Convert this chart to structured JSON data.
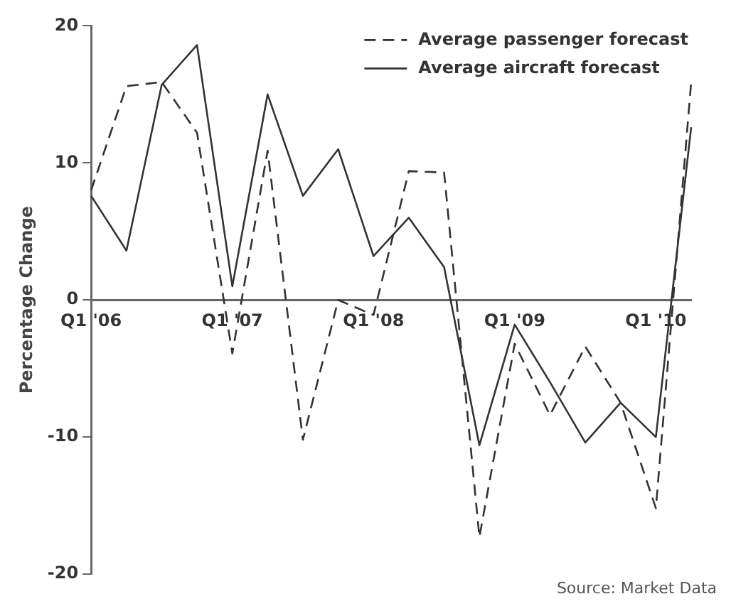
{
  "chart_data": {
    "type": "line",
    "ylabel": "Percentage Change",
    "categories": [
      "Q1 '06",
      null,
      null,
      null,
      "Q1 '07",
      null,
      null,
      null,
      "Q1 '08",
      null,
      null,
      null,
      "Q1 '09",
      null,
      null,
      null,
      "Q1 '10",
      null
    ],
    "series": [
      {
        "name": "Average passenger forecast",
        "color": "#333333",
        "line_style": "dashed",
        "values": [
          8.0,
          15.6,
          15.9,
          12.2,
          -3.9,
          10.9,
          -10.2,
          0,
          -1.1,
          9.4,
          9.3,
          -17.3,
          -3.2,
          -8.4,
          -3.4,
          -7.5,
          -15.2,
          15.9
        ]
      },
      {
        "name": "Average aircraft forecast",
        "color": "#333333",
        "line_style": "solid",
        "values": [
          7.6,
          3.6,
          15.7,
          18.6,
          1.0,
          15.0,
          7.6,
          11.0,
          3.2,
          6.0,
          2.4,
          -10.6,
          -1.8,
          -6.0,
          -10.4,
          -7.5,
          -10.0,
          12.6
        ]
      }
    ],
    "ylim": [
      -20,
      20
    ],
    "yticks": [
      -20,
      -10,
      0,
      10,
      20
    ],
    "grid": false,
    "legend": "top right",
    "marker": "none",
    "annotations": [
      "Source: Market Data"
    ]
  }
}
